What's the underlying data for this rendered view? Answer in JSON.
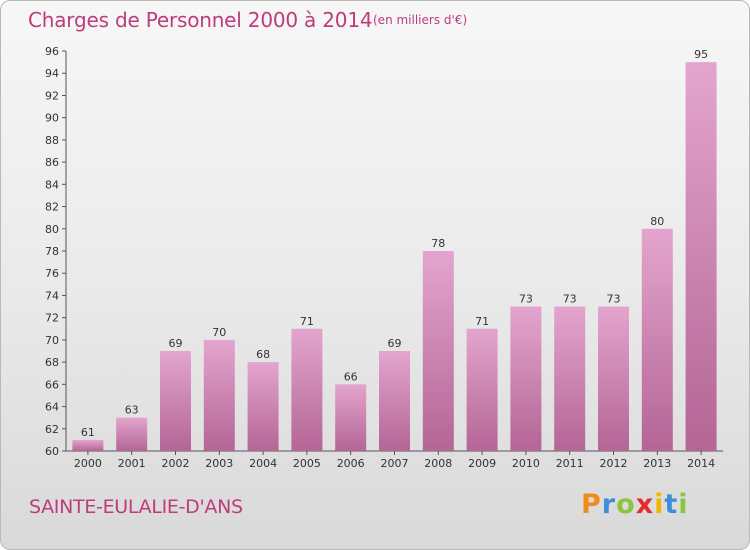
{
  "header": {
    "title": "Charges de Personnel 2000 à 2014",
    "subtitle": "(en milliers d'€)"
  },
  "footer": {
    "commune": "SAINTE-EULALIE-D'ANS",
    "logo_letters": [
      "P",
      "r",
      "o",
      "x",
      "i",
      "t",
      "i"
    ],
    "logo_colors": [
      "#f08c1e",
      "#3c8fd8",
      "#8cc63f",
      "#e52b2b",
      "#f2b800",
      "#3c8fd8",
      "#8cc63f"
    ]
  },
  "colors": {
    "bar_top": "#e3a5ce",
    "bar_bottom": "#b46595",
    "accent": "#bd3c7c"
  },
  "chart_data": {
    "type": "bar",
    "categories": [
      "2000",
      "2001",
      "2002",
      "2003",
      "2004",
      "2005",
      "2006",
      "2007",
      "2008",
      "2009",
      "2010",
      "2011",
      "2012",
      "2013",
      "2014"
    ],
    "values": [
      61,
      63,
      69,
      70,
      68,
      71,
      66,
      69,
      78,
      71,
      73,
      73,
      73,
      80,
      95
    ],
    "ylim": [
      60,
      96
    ],
    "yticks": [
      60,
      62,
      64,
      66,
      68,
      70,
      72,
      74,
      76,
      78,
      80,
      82,
      84,
      86,
      88,
      90,
      92,
      94,
      96
    ],
    "grid": false,
    "xlabel": "",
    "ylabel": ""
  }
}
